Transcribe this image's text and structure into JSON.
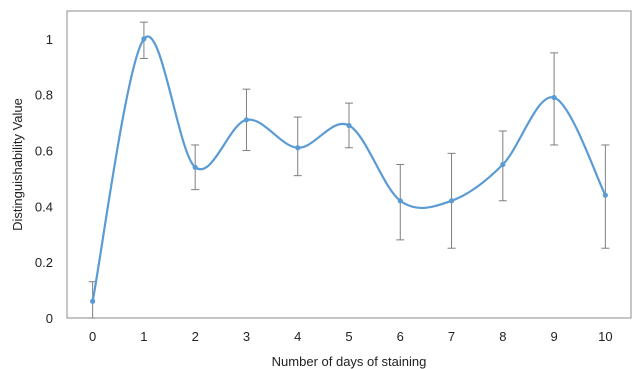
{
  "chart_data": {
    "type": "line",
    "xlabel": "Number of days of staining",
    "ylabel": "Distinguishability Value",
    "x": [
      0,
      1,
      2,
      3,
      4,
      5,
      6,
      7,
      8,
      9,
      10
    ],
    "x_ticks": [
      "0",
      "1",
      "2",
      "3",
      "4",
      "5",
      "6",
      "7",
      "8",
      "9",
      "10"
    ],
    "y_ticks": [
      "0",
      "0.2",
      "0.4",
      "0.6",
      "0.8",
      "1"
    ],
    "xlim": [
      -0.5,
      10.5
    ],
    "ylim": [
      0,
      1.1
    ],
    "grid": false,
    "series": [
      {
        "values": [
          0.06,
          1.0,
          0.54,
          0.71,
          0.61,
          0.69,
          0.42,
          0.42,
          0.55,
          0.79,
          0.44
        ],
        "error_upper": [
          0.13,
          1.06,
          0.62,
          0.82,
          0.72,
          0.77,
          0.55,
          0.59,
          0.67,
          0.95,
          0.62
        ],
        "error_lower": [
          0.0,
          0.93,
          0.46,
          0.6,
          0.51,
          0.61,
          0.28,
          0.25,
          0.42,
          0.62,
          0.25
        ],
        "color": "#5b9bd5",
        "smooth": true
      }
    ],
    "error_bar_color": "#7f7f7f"
  }
}
